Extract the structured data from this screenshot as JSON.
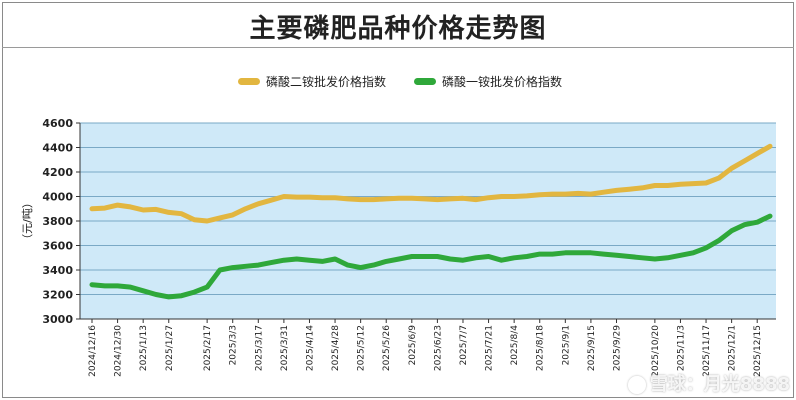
{
  "colors": {
    "plot_bg": "#cfe9f8",
    "grid": "#7aa9c6",
    "series_1": "#e2b640",
    "series_2": "#2fa83a",
    "axis": "#333333"
  },
  "watermark": "雪球：月光8888",
  "chart_data": {
    "type": "line",
    "title": "主要磷肥品种价格走势图",
    "ylabel": "（元/吨）",
    "xlabel": "",
    "ylim": [
      3000,
      4600
    ],
    "yticks": [
      3000,
      3200,
      3400,
      3600,
      3800,
      4000,
      4200,
      4400,
      4600
    ],
    "grid": true,
    "legend_position": "top-center",
    "x_tick_labels": [
      "2024/12/16",
      "2024/12/30",
      "2025/1/13",
      "2025/1/27",
      "2025/2/17",
      "2025/3/3",
      "2025/3/17",
      "2025/3/31",
      "2025/4/14",
      "2025/4/28",
      "2025/5/12",
      "2025/5/26",
      "2025/6/9",
      "2025/6/23",
      "2025/7/7",
      "2025/7/21",
      "2025/8/4",
      "2025/8/18",
      "2025/9/1",
      "2025/9/15",
      "2025/9/29",
      "2025/10/20",
      "2025/11/3",
      "2025/11/17",
      "2025/12/1",
      "2025/12/15"
    ],
    "x": [
      "2024/12/16",
      "2024/12/23",
      "2024/12/30",
      "2025/1/6",
      "2025/1/13",
      "2025/1/20",
      "2025/1/27",
      "2025/2/3",
      "2025/2/10",
      "2025/2/17",
      "2025/2/24",
      "2025/3/3",
      "2025/3/10",
      "2025/3/17",
      "2025/3/24",
      "2025/3/31",
      "2025/4/7",
      "2025/4/14",
      "2025/4/21",
      "2025/4/28",
      "2025/5/5",
      "2025/5/12",
      "2025/5/19",
      "2025/5/26",
      "2025/6/2",
      "2025/6/9",
      "2025/6/16",
      "2025/6/23",
      "2025/6/30",
      "2025/7/7",
      "2025/7/14",
      "2025/7/21",
      "2025/7/28",
      "2025/8/4",
      "2025/8/11",
      "2025/8/18",
      "2025/8/25",
      "2025/9/1",
      "2025/9/8",
      "2025/9/15",
      "2025/9/22",
      "2025/9/29",
      "2025/10/6",
      "2025/10/13",
      "2025/10/20",
      "2025/10/27",
      "2025/11/3",
      "2025/11/10",
      "2025/11/17",
      "2025/11/24",
      "2025/12/1",
      "2025/12/8",
      "2025/12/15",
      "2025/12/22"
    ],
    "series": [
      {
        "name": "磷酸二铵批发价格指数",
        "color": "#e2b640",
        "values": [
          3900,
          3905,
          3930,
          3915,
          3890,
          3895,
          3870,
          3860,
          3810,
          3800,
          3825,
          3850,
          3900,
          3940,
          3970,
          4000,
          3995,
          3995,
          3990,
          3990,
          3980,
          3975,
          3975,
          3980,
          3985,
          3985,
          3980,
          3975,
          3980,
          3985,
          3975,
          3990,
          4000,
          4000,
          4005,
          4015,
          4020,
          4020,
          4025,
          4020,
          4035,
          4050,
          4060,
          4070,
          4090,
          4090,
          4100,
          4105,
          4110,
          4150,
          4230,
          4290,
          4350,
          4410
        ]
      },
      {
        "name": "磷酸一铵批发价格指数",
        "color": "#2fa83a",
        "values": [
          3280,
          3270,
          3270,
          3260,
          3230,
          3200,
          3180,
          3190,
          3220,
          3260,
          3400,
          3420,
          3430,
          3440,
          3460,
          3480,
          3490,
          3480,
          3470,
          3490,
          3440,
          3420,
          3440,
          3470,
          3490,
          3510,
          3510,
          3510,
          3490,
          3480,
          3500,
          3510,
          3480,
          3500,
          3510,
          3530,
          3530,
          3540,
          3540,
          3540,
          3530,
          3520,
          3510,
          3500,
          3490,
          3500,
          3520,
          3540,
          3580,
          3640,
          3720,
          3770,
          3790,
          3840
        ]
      }
    ]
  }
}
